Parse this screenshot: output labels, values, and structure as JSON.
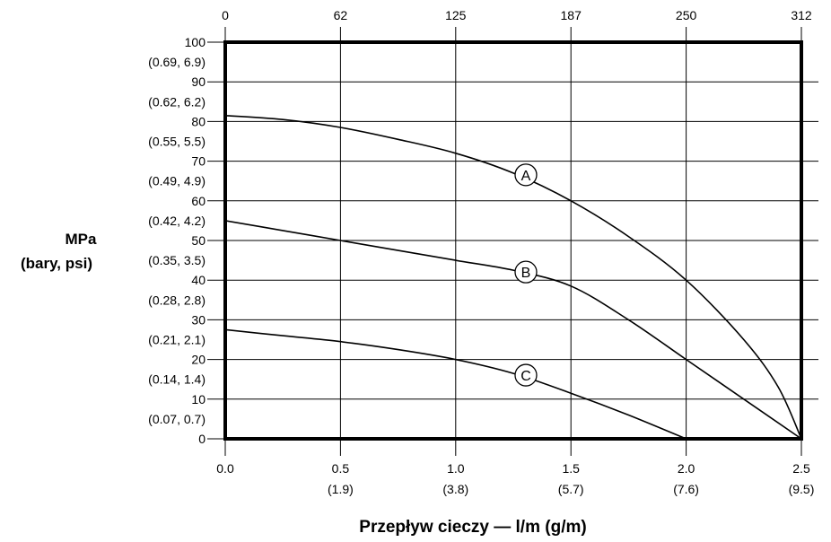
{
  "chart_data": {
    "type": "line",
    "title": "",
    "xlabel": "Przepływ cieczy — l/m (g/m)",
    "ylabel_line1": "MPa",
    "ylabel_line2": "(bary, psi)",
    "xlim": [
      0,
      2.5
    ],
    "ylim": [
      0,
      100
    ],
    "grid": true,
    "x_bottom_ticks": [
      {
        "value": 0,
        "label": "0.0",
        "sub": ""
      },
      {
        "value": 0.5,
        "label": "0.5",
        "sub": "(1.9)"
      },
      {
        "value": 1.0,
        "label": "1.0",
        "sub": "(3.8)"
      },
      {
        "value": 1.5,
        "label": "1.5",
        "sub": "(5.7)"
      },
      {
        "value": 2.0,
        "label": "2.0",
        "sub": "(7.6)"
      },
      {
        "value": 2.5,
        "label": "2.5",
        "sub": "(9.5)"
      }
    ],
    "x_top_ticks": [
      {
        "value": 0,
        "label": "0"
      },
      {
        "value": 0.5,
        "label": "62"
      },
      {
        "value": 1.0,
        "label": "125"
      },
      {
        "value": 1.5,
        "label": "187"
      },
      {
        "value": 2.0,
        "label": "250"
      },
      {
        "value": 2.5,
        "label": "312"
      }
    ],
    "y_ticks": [
      {
        "value": 0,
        "label": "0"
      },
      {
        "value": 10,
        "label": "10"
      },
      {
        "value": 20,
        "label": "20"
      },
      {
        "value": 30,
        "label": "30"
      },
      {
        "value": 40,
        "label": "40"
      },
      {
        "value": 50,
        "label": "50"
      },
      {
        "value": 60,
        "label": "60"
      },
      {
        "value": 70,
        "label": "70"
      },
      {
        "value": 80,
        "label": "80"
      },
      {
        "value": 90,
        "label": "90"
      },
      {
        "value": 100,
        "label": "100"
      }
    ],
    "y_minor_ticks": [
      {
        "value": 5,
        "label": "(0.07, 0.7)"
      },
      {
        "value": 15,
        "label": "(0.14, 1.4)"
      },
      {
        "value": 25,
        "label": "(0.21, 2.1)"
      },
      {
        "value": 35,
        "label": "(0.28, 2.8)"
      },
      {
        "value": 45,
        "label": "(0.35, 3.5)"
      },
      {
        "value": 55,
        "label": "(0.42, 4.2)"
      },
      {
        "value": 65,
        "label": "(0.49, 4.9)"
      },
      {
        "value": 75,
        "label": "(0.55, 5.5)"
      },
      {
        "value": 85,
        "label": "(0.62, 6.2)"
      },
      {
        "value": 95,
        "label": "(0.69, 6.9)"
      }
    ],
    "series": [
      {
        "name": "A",
        "label_at": 1.25,
        "points": [
          [
            0,
            81.5
          ],
          [
            0.25,
            80.5
          ],
          [
            0.5,
            78.5
          ],
          [
            0.75,
            75.5
          ],
          [
            1.0,
            72
          ],
          [
            1.25,
            67
          ],
          [
            1.5,
            60
          ],
          [
            1.75,
            51
          ],
          [
            2.0,
            40
          ],
          [
            2.25,
            25
          ],
          [
            2.4,
            13
          ],
          [
            2.5,
            0
          ]
        ]
      },
      {
        "name": "B",
        "label_at": 1.25,
        "points": [
          [
            0,
            55
          ],
          [
            0.25,
            52.5
          ],
          [
            0.5,
            50
          ],
          [
            0.75,
            47.5
          ],
          [
            1.0,
            45
          ],
          [
            1.25,
            42.5
          ],
          [
            1.5,
            38.5
          ],
          [
            1.75,
            30
          ],
          [
            2.0,
            20
          ],
          [
            2.25,
            10
          ],
          [
            2.5,
            0
          ]
        ]
      },
      {
        "name": "C",
        "label_at": 1.25,
        "points": [
          [
            0,
            27.5
          ],
          [
            0.25,
            26
          ],
          [
            0.5,
            24.5
          ],
          [
            0.75,
            22.5
          ],
          [
            1.0,
            20
          ],
          [
            1.25,
            16.5
          ],
          [
            1.5,
            11.5
          ],
          [
            1.75,
            6
          ],
          [
            2.0,
            0
          ]
        ]
      }
    ]
  }
}
